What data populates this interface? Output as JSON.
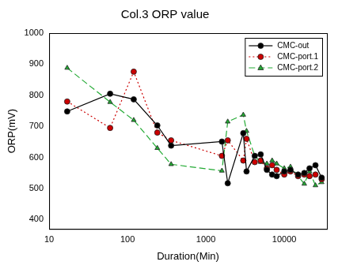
{
  "chart_data": {
    "type": "line",
    "title": "Col.3 ORP value",
    "x_label": "Duration(Min)",
    "y_label": "ORP(mV)",
    "log": "x",
    "x": [
      17,
      60,
      120,
      240,
      360,
      1600,
      1900,
      3000,
      3300,
      4200,
      5000,
      6000,
      7000,
      8000,
      10000,
      12000,
      15000,
      18000,
      21000,
      25000,
      30000
    ],
    "series": [
      {
        "name": "CMC-out",
        "color": "#000000",
        "marker": "circle",
        "line_style": "solid",
        "values": [
          748,
          805,
          787,
          703,
          638,
          651,
          517,
          678,
          555,
          605,
          610,
          560,
          545,
          540,
          555,
          560,
          545,
          550,
          565,
          575,
          535
        ]
      },
      {
        "name": "CMC-port.1",
        "color": "#cc0000",
        "marker": "circle",
        "line_style": "dotted",
        "values": [
          780,
          695,
          876,
          680,
          655,
          605,
          655,
          590,
          660,
          585,
          590,
          565,
          575,
          560,
          545,
          555,
          540,
          545,
          540,
          545,
          530
        ]
      },
      {
        "name": "CMC-port.2",
        "color": "#22aa33",
        "marker": "triangle",
        "line_style": "dashed",
        "values": [
          888,
          778,
          720,
          630,
          578,
          557,
          715,
          737,
          685,
          605,
          585,
          580,
          590,
          580,
          565,
          570,
          540,
          515,
          555,
          510,
          520
        ]
      }
    ],
    "xlim": [
      10,
      35000
    ],
    "xticks": [
      10,
      100,
      1000,
      10000
    ],
    "ylim": [
      370,
      1000
    ],
    "yticks": [
      400,
      500,
      600,
      700,
      800,
      900,
      1000
    ],
    "grid": false,
    "legend": "upper right"
  }
}
